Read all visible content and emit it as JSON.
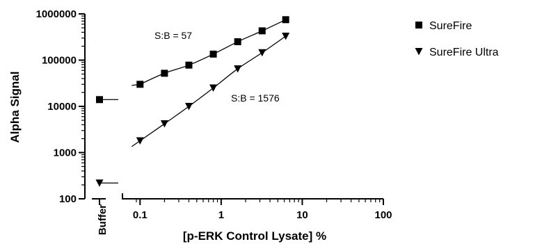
{
  "chart_data": {
    "type": "scatter",
    "title": "",
    "xlabel": "[p-ERK Control Lysate] %",
    "ylabel": "Alpha Signal",
    "x_scale": "log",
    "y_scale": "log",
    "xlim": [
      0.08,
      100
    ],
    "ylim": [
      100,
      1000000
    ],
    "x_ticks": [
      "0.1",
      "1",
      "10",
      "100"
    ],
    "y_ticks": [
      "100",
      "1000",
      "10000",
      "100000",
      "1000000"
    ],
    "buffer_label": "Buffer",
    "legend_position": "right",
    "series": [
      {
        "name": "SureFire",
        "marker": "square",
        "x": [
          0.1,
          0.2,
          0.4,
          0.8,
          1.6,
          3.2,
          6.25
        ],
        "y": [
          30000,
          52000,
          78000,
          135000,
          250000,
          430000,
          750000
        ],
        "buffer_value": 14000
      },
      {
        "name": "SureFire Ultra",
        "marker": "triangle-down",
        "x": [
          0.1,
          0.2,
          0.4,
          0.8,
          1.6,
          3.2,
          6.25
        ],
        "y": [
          1800,
          4200,
          10000,
          25000,
          65000,
          145000,
          330000
        ],
        "buffer_value": 220
      }
    ],
    "annotations": [
      {
        "text": "S:B = 57",
        "series": "SureFire"
      },
      {
        "text": "S:B = 1576",
        "series": "SureFire Ultra"
      }
    ]
  }
}
